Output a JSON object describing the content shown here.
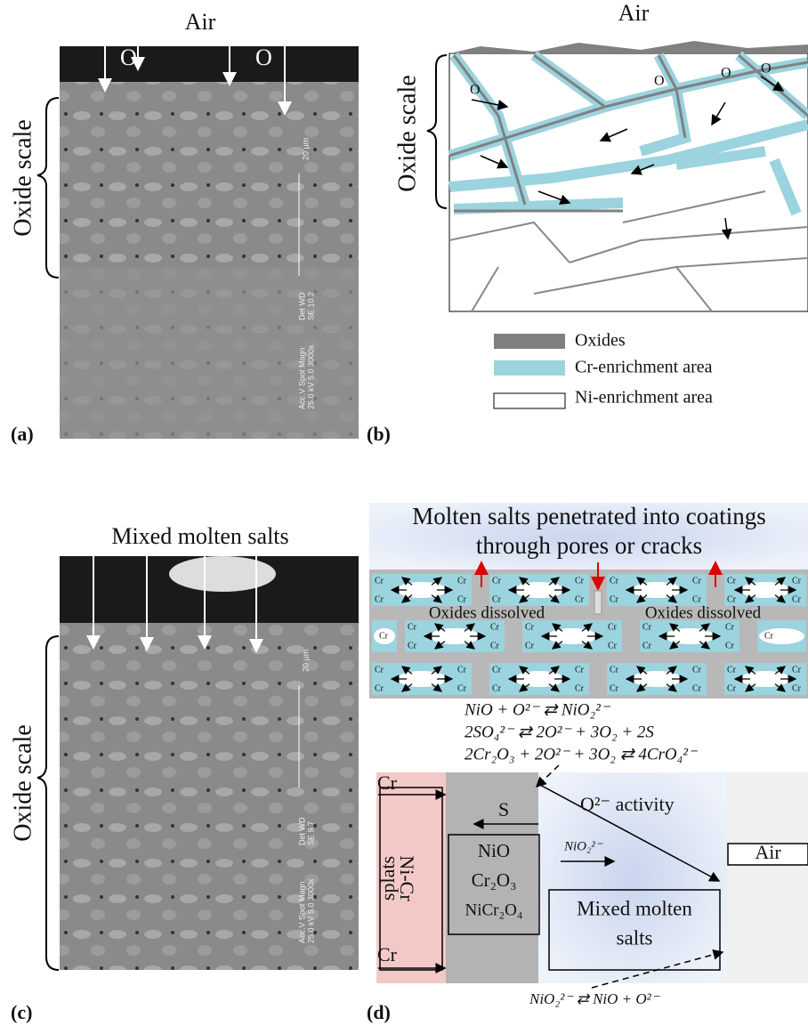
{
  "panel_a": {
    "title": "Air",
    "label": "(a)",
    "side_label": "Oxide scale",
    "arrow_labels": [
      "O",
      "O"
    ],
    "scale_bar": "20 µm",
    "micrograph_info": [
      "Acc.V  Spot Magn",
      "25.0 kV 5.0  3000x",
      "Det  WD",
      "SE   10.2"
    ]
  },
  "panel_b": {
    "title": "Air",
    "label": "(b)",
    "side_label": "Oxide scale",
    "arrow_labels": [
      "O",
      "O",
      "O",
      "O"
    ],
    "legend": [
      "Oxides",
      "Cr-enrichment area",
      "Ni-enrichment area"
    ]
  },
  "panel_c": {
    "title": "Mixed molten salts",
    "label": "(c)",
    "side_label": "Oxide scale",
    "scale_bar": "20 µm",
    "micrograph_info": [
      "Acc.V  Spot Magn",
      "25.0 kV 5.0  3000x",
      "Det  WD",
      "SE   9.7"
    ]
  },
  "panel_d": {
    "label": "(d)",
    "title_lines": [
      "Molten salts penetrated into coatings",
      "through pores or cracks"
    ],
    "cell_label": "Cr",
    "dissolved_labels": [
      "Oxides dissolved",
      "Oxides dissolved"
    ],
    "equations": [
      "NiO + O²⁻ ⇄ NiO₂²⁻",
      "2SO₄²⁻ ⇄ 2O²⁻ + 3O₂ + 2S",
      "2Cr₂O₃ + 2O²⁻ + 3O₂ ⇄ 4CrO₄²⁻"
    ],
    "splats": [
      "Ni-Cr",
      "splats"
    ],
    "cr_arrows": [
      "Cr",
      "Cr"
    ],
    "sulfur": "S",
    "oxides": [
      "NiO",
      "Cr₂O₃",
      "NiCr₂O₄"
    ],
    "activity": "O²⁻ activity",
    "nio2": "NiO₂²⁻",
    "air": "Air",
    "salts": [
      "Mixed molten",
      "salts"
    ],
    "bottom_equation": "NiO₂²⁻ ⇄ NiO + O²⁻"
  }
}
